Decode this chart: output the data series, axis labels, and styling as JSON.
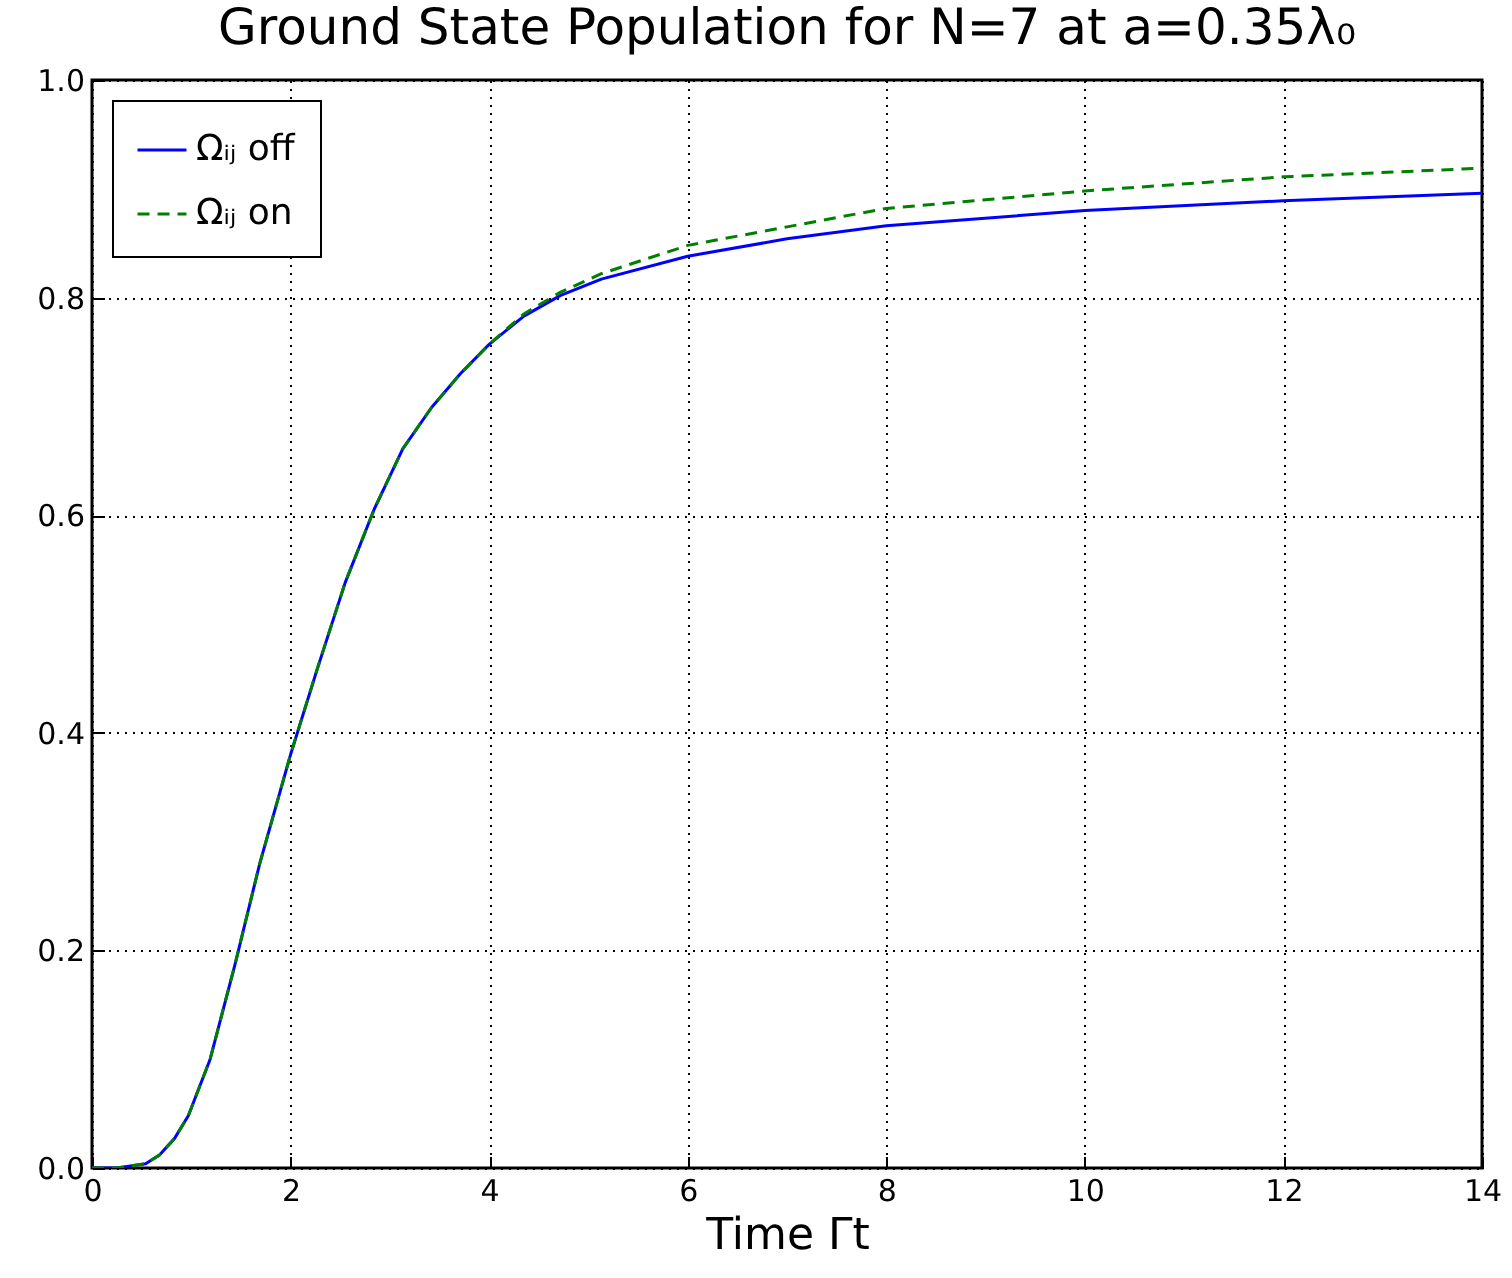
{
  "chart_data": {
    "type": "line",
    "title": "Ground State Population for N=7 at a=0.35λ₀",
    "xlabel": "Time Γt",
    "xlim": [
      0,
      14
    ],
    "xticks": [
      0,
      2,
      4,
      6,
      8,
      10,
      12,
      14
    ],
    "ylim": [
      0,
      1
    ],
    "yticks": [
      {
        "value": 0,
        "label": "0.0"
      },
      {
        "value": 0.2,
        "label": "0.2"
      },
      {
        "value": 0.4,
        "label": "0.4"
      },
      {
        "value": 0.6,
        "label": "0.6"
      },
      {
        "value": 0.8,
        "label": "0.8"
      },
      {
        "value": 1,
        "label": "1.0"
      }
    ],
    "grid": true,
    "legend": "top left",
    "series": [
      {
        "name": "Ωᵢⱼ off",
        "color": "#0000ff",
        "line_style": "solid",
        "x": [
          0,
          0.25,
          0.54,
          0.68,
          0.83,
          0.97,
          1.19,
          1.44,
          1.69,
          2.0,
          2.27,
          2.55,
          2.84,
          3.13,
          3.42,
          3.71,
          4.0,
          4.35,
          4.72,
          5.13,
          6,
          7,
          8,
          10,
          12,
          14
        ],
        "values": [
          0,
          0,
          0.004,
          0.012,
          0.027,
          0.048,
          0.1,
          0.187,
          0.28,
          0.38,
          0.459,
          0.538,
          0.605,
          0.661,
          0.699,
          0.73,
          0.757,
          0.783,
          0.802,
          0.817,
          0.838,
          0.854,
          0.866,
          0.88,
          0.889,
          0.896
        ]
      },
      {
        "name": "Ωᵢⱼ on",
        "color": "#008000",
        "line_style": "dashed",
        "x": [
          0,
          0.25,
          0.54,
          0.68,
          0.83,
          0.97,
          1.19,
          1.44,
          1.69,
          2.0,
          2.27,
          2.55,
          2.84,
          3.13,
          3.42,
          3.71,
          4.0,
          4.35,
          4.72,
          5.13,
          6,
          7,
          8,
          10,
          12,
          14
        ],
        "values": [
          0,
          0,
          0.004,
          0.012,
          0.027,
          0.048,
          0.1,
          0.187,
          0.28,
          0.38,
          0.459,
          0.538,
          0.605,
          0.661,
          0.699,
          0.73,
          0.757,
          0.785,
          0.805,
          0.822,
          0.848,
          0.865,
          0.882,
          0.898,
          0.911,
          0.919
        ]
      }
    ]
  }
}
